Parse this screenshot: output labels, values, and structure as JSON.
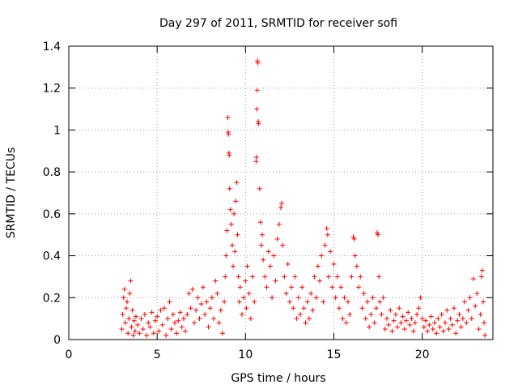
{
  "chart_data": {
    "type": "scatter",
    "title": "Day 297 of 2011, SRMTID for receiver sofi",
    "xlabel": "GPS time / hours",
    "ylabel": "SRMTID / TECUs",
    "xlim": [
      0,
      24
    ],
    "ylim": [
      0,
      1.4
    ],
    "xticks": [
      0,
      5,
      10,
      15,
      20
    ],
    "xtick_labels": [
      "0",
      "5",
      "10",
      "15",
      "20"
    ],
    "yticks": [
      0,
      0.2,
      0.4,
      0.6,
      0.8,
      1.0,
      1.2,
      1.4
    ],
    "ytick_labels": [
      "0",
      "0.2",
      "0.4",
      "0.6",
      "0.8",
      "1",
      "1.2",
      "1.4"
    ],
    "grid": true,
    "marker": "+",
    "series": [
      {
        "name": "SRMTID",
        "color": "#ff0000",
        "points": [
          [
            3.0,
            0.05
          ],
          [
            3.05,
            0.12
          ],
          [
            3.1,
            0.2
          ],
          [
            3.15,
            0.24
          ],
          [
            3.2,
            0.08
          ],
          [
            3.25,
            0.15
          ],
          [
            3.3,
            0.18
          ],
          [
            3.35,
            0.03
          ],
          [
            3.4,
            0.1
          ],
          [
            3.45,
            0.22
          ],
          [
            3.5,
            0.28
          ],
          [
            3.55,
            0.06
          ],
          [
            3.6,
            0.14
          ],
          [
            3.65,
            0.02
          ],
          [
            3.7,
            0.09
          ],
          [
            3.75,
            0.04
          ],
          [
            3.8,
            0.11
          ],
          [
            3.9,
            0.07
          ],
          [
            4.0,
            0.03
          ],
          [
            4.1,
            0.1
          ],
          [
            4.2,
            0.05
          ],
          [
            4.3,
            0.12
          ],
          [
            4.4,
            0.02
          ],
          [
            4.5,
            0.08
          ],
          [
            4.6,
            0.06
          ],
          [
            4.7,
            0.13
          ],
          [
            4.8,
            0.03
          ],
          [
            4.9,
            0.09
          ],
          [
            5.0,
            0.11
          ],
          [
            5.1,
            0.04
          ],
          [
            5.2,
            0.14
          ],
          [
            5.3,
            0.07
          ],
          [
            5.4,
            0.15
          ],
          [
            5.5,
            0.02
          ],
          [
            5.6,
            0.1
          ],
          [
            5.7,
            0.18
          ],
          [
            5.8,
            0.05
          ],
          [
            5.9,
            0.12
          ],
          [
            6.0,
            0.08
          ],
          [
            6.1,
            0.03
          ],
          [
            6.2,
            0.09
          ],
          [
            6.3,
            0.13
          ],
          [
            6.4,
            0.06
          ],
          [
            6.5,
            0.1
          ],
          [
            6.6,
            0.04
          ],
          [
            6.7,
            0.12
          ],
          [
            6.8,
            0.22
          ],
          [
            6.9,
            0.15
          ],
          [
            7.0,
            0.24
          ],
          [
            7.1,
            0.08
          ],
          [
            7.2,
            0.14
          ],
          [
            7.3,
            0.2
          ],
          [
            7.4,
            0.1
          ],
          [
            7.5,
            0.17
          ],
          [
            7.6,
            0.25
          ],
          [
            7.7,
            0.12
          ],
          [
            7.8,
            0.18
          ],
          [
            7.9,
            0.06
          ],
          [
            8.0,
            0.15
          ],
          [
            8.1,
            0.2
          ],
          [
            8.2,
            0.1
          ],
          [
            8.3,
            0.28
          ],
          [
            8.4,
            0.22
          ],
          [
            8.5,
            0.08
          ],
          [
            8.6,
            0.14
          ],
          [
            8.7,
            0.03
          ],
          [
            8.8,
            0.18
          ],
          [
            8.85,
            0.3
          ],
          [
            8.9,
            0.4
          ],
          [
            8.95,
            0.52
          ],
          [
            9.0,
            1.06
          ],
          [
            9.02,
            0.99
          ],
          [
            9.04,
            0.98
          ],
          [
            9.06,
            0.89
          ],
          [
            9.08,
            0.88
          ],
          [
            9.1,
            0.72
          ],
          [
            9.15,
            0.62
          ],
          [
            9.2,
            0.55
          ],
          [
            9.25,
            0.45
          ],
          [
            9.3,
            0.35
          ],
          [
            9.35,
            0.6
          ],
          [
            9.4,
            0.42
          ],
          [
            9.45,
            0.66
          ],
          [
            9.5,
            0.75
          ],
          [
            9.55,
            0.5
          ],
          [
            9.6,
            0.3
          ],
          [
            9.65,
            0.18
          ],
          [
            9.7,
            0.25
          ],
          [
            9.8,
            0.12
          ],
          [
            9.9,
            0.2
          ],
          [
            10.0,
            0.28
          ],
          [
            10.05,
            0.15
          ],
          [
            10.1,
            0.35
          ],
          [
            10.2,
            0.22
          ],
          [
            10.3,
            0.1
          ],
          [
            10.4,
            0.3
          ],
          [
            10.5,
            0.18
          ],
          [
            10.6,
            0.85
          ],
          [
            10.62,
            0.87
          ],
          [
            10.64,
            1.1
          ],
          [
            10.66,
            1.19
          ],
          [
            10.68,
            1.33
          ],
          [
            10.7,
            1.32
          ],
          [
            10.72,
            1.04
          ],
          [
            10.74,
            1.03
          ],
          [
            10.8,
            0.72
          ],
          [
            10.85,
            0.56
          ],
          [
            10.9,
            0.45
          ],
          [
            10.95,
            0.5
          ],
          [
            11.0,
            0.38
          ],
          [
            11.1,
            0.3
          ],
          [
            11.2,
            0.25
          ],
          [
            11.3,
            0.42
          ],
          [
            11.4,
            0.35
          ],
          [
            11.5,
            0.2
          ],
          [
            11.6,
            0.4
          ],
          [
            11.7,
            0.28
          ],
          [
            11.8,
            0.48
          ],
          [
            11.9,
            0.55
          ],
          [
            12.0,
            0.63
          ],
          [
            12.05,
            0.65
          ],
          [
            12.1,
            0.45
          ],
          [
            12.2,
            0.3
          ],
          [
            12.3,
            0.22
          ],
          [
            12.4,
            0.36
          ],
          [
            12.5,
            0.18
          ],
          [
            12.6,
            0.25
          ],
          [
            12.7,
            0.15
          ],
          [
            12.8,
            0.3
          ],
          [
            12.9,
            0.1
          ],
          [
            13.0,
            0.2
          ],
          [
            13.1,
            0.12
          ],
          [
            13.2,
            0.25
          ],
          [
            13.3,
            0.15
          ],
          [
            13.4,
            0.08
          ],
          [
            13.5,
            0.18
          ],
          [
            13.6,
            0.1
          ],
          [
            13.7,
            0.22
          ],
          [
            13.8,
            0.14
          ],
          [
            13.9,
            0.3
          ],
          [
            14.0,
            0.2
          ],
          [
            14.1,
            0.35
          ],
          [
            14.2,
            0.28
          ],
          [
            14.3,
            0.4
          ],
          [
            14.4,
            0.18
          ],
          [
            14.5,
            0.45
          ],
          [
            14.6,
            0.53
          ],
          [
            14.65,
            0.5
          ],
          [
            14.7,
            0.3
          ],
          [
            14.8,
            0.42
          ],
          [
            14.9,
            0.25
          ],
          [
            15.0,
            0.36
          ],
          [
            15.1,
            0.2
          ],
          [
            15.2,
            0.3
          ],
          [
            15.3,
            0.15
          ],
          [
            15.4,
            0.25
          ],
          [
            15.5,
            0.1
          ],
          [
            15.6,
            0.2
          ],
          [
            15.7,
            0.08
          ],
          [
            15.8,
            0.18
          ],
          [
            15.9,
            0.12
          ],
          [
            16.0,
            0.3
          ],
          [
            16.1,
            0.49
          ],
          [
            16.15,
            0.48
          ],
          [
            16.2,
            0.4
          ],
          [
            16.3,
            0.35
          ],
          [
            16.4,
            0.25
          ],
          [
            16.5,
            0.3
          ],
          [
            16.6,
            0.15
          ],
          [
            16.7,
            0.22
          ],
          [
            16.8,
            0.1
          ],
          [
            16.9,
            0.18
          ],
          [
            17.0,
            0.06
          ],
          [
            17.1,
            0.12
          ],
          [
            17.2,
            0.2
          ],
          [
            17.3,
            0.08
          ],
          [
            17.4,
            0.15
          ],
          [
            17.45,
            0.51
          ],
          [
            17.5,
            0.5
          ],
          [
            17.55,
            0.3
          ],
          [
            17.6,
            0.18
          ],
          [
            17.7,
            0.12
          ],
          [
            17.8,
            0.2
          ],
          [
            17.9,
            0.05
          ],
          [
            18.0,
            0.1
          ],
          [
            18.1,
            0.07
          ],
          [
            18.2,
            0.14
          ],
          [
            18.3,
            0.04
          ],
          [
            18.4,
            0.09
          ],
          [
            18.5,
            0.12
          ],
          [
            18.6,
            0.06
          ],
          [
            18.7,
            0.15
          ],
          [
            18.8,
            0.08
          ],
          [
            18.9,
            0.11
          ],
          [
            19.0,
            0.05
          ],
          [
            19.1,
            0.09
          ],
          [
            19.2,
            0.13
          ],
          [
            19.3,
            0.07
          ],
          [
            19.4,
            0.1
          ],
          [
            19.5,
            0.04
          ],
          [
            19.6,
            0.08
          ],
          [
            19.7,
            0.12
          ],
          [
            19.8,
            0.15
          ],
          [
            19.9,
            0.2
          ],
          [
            20.0,
            0.1
          ],
          [
            20.1,
            0.06
          ],
          [
            20.2,
            0.09
          ],
          [
            20.3,
            0.04
          ],
          [
            20.4,
            0.07
          ],
          [
            20.5,
            0.11
          ],
          [
            20.6,
            0.05
          ],
          [
            20.7,
            0.08
          ],
          [
            20.8,
            0.03
          ],
          [
            20.9,
            0.1
          ],
          [
            21.0,
            0.06
          ],
          [
            21.1,
            0.12
          ],
          [
            21.2,
            0.04
          ],
          [
            21.3,
            0.08
          ],
          [
            21.4,
            0.14
          ],
          [
            21.5,
            0.05
          ],
          [
            21.6,
            0.1
          ],
          [
            21.7,
            0.07
          ],
          [
            21.8,
            0.15
          ],
          [
            21.9,
            0.03
          ],
          [
            22.0,
            0.09
          ],
          [
            22.1,
            0.12
          ],
          [
            22.2,
            0.06
          ],
          [
            22.3,
            0.1
          ],
          [
            22.4,
            0.18
          ],
          [
            22.5,
            0.08
          ],
          [
            22.6,
            0.14
          ],
          [
            22.7,
            0.2
          ],
          [
            22.8,
            0.1
          ],
          [
            22.9,
            0.29
          ],
          [
            23.0,
            0.16
          ],
          [
            23.1,
            0.22
          ],
          [
            23.2,
            0.05
          ],
          [
            23.3,
            0.12
          ],
          [
            23.35,
            0.3
          ],
          [
            23.4,
            0.33
          ],
          [
            23.45,
            0.18
          ],
          [
            23.5,
            0.08
          ],
          [
            23.55,
            0.02
          ]
        ]
      }
    ]
  }
}
